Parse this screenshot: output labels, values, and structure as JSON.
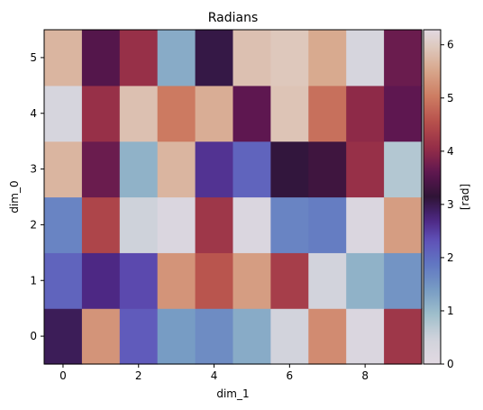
{
  "chart_data": {
    "type": "heatmap",
    "title": "Radians",
    "xlabel": "dim_1",
    "ylabel": "dim_0",
    "x_ticks": [
      "0",
      "2",
      "4",
      "6",
      "8"
    ],
    "y_ticks": [
      "0",
      "1",
      "2",
      "3",
      "4",
      "5"
    ],
    "colorbar": {
      "label": "[rad]",
      "ticks": [
        "0",
        "1",
        "2",
        "3",
        "4",
        "5",
        "6"
      ],
      "range": [
        0,
        6.283
      ],
      "colormap": "twilight_shifted"
    },
    "x": [
      0,
      1,
      2,
      3,
      4,
      5,
      6,
      7,
      8,
      9
    ],
    "y": [
      0,
      1,
      2,
      3,
      4,
      5
    ],
    "values": [
      [
        2.95,
        5.3,
        2.2,
        1.4,
        1.6,
        1.2,
        0.4,
        5.2,
        0.2,
        4.2
      ],
      [
        2.1,
        2.7,
        2.4,
        5.3,
        4.6,
        5.4,
        4.3,
        0.4,
        1.1,
        1.5
      ],
      [
        1.7,
        4.4,
        0.5,
        0.2,
        4.2,
        0.2,
        1.7,
        1.8,
        0.2,
        5.4
      ],
      [
        5.7,
        3.7,
        1.1,
        5.7,
        2.6,
        2.1,
        3.1,
        3.3,
        4.1,
        0.75
      ],
      [
        0.3,
        4.1,
        5.85,
        5.0,
        5.6,
        3.6,
        5.9,
        4.9,
        4.0,
        3.6
      ],
      [
        5.7,
        3.5,
        4.1,
        1.2,
        3.05,
        5.85,
        5.95,
        5.55,
        0.3,
        3.7
      ]
    ]
  }
}
